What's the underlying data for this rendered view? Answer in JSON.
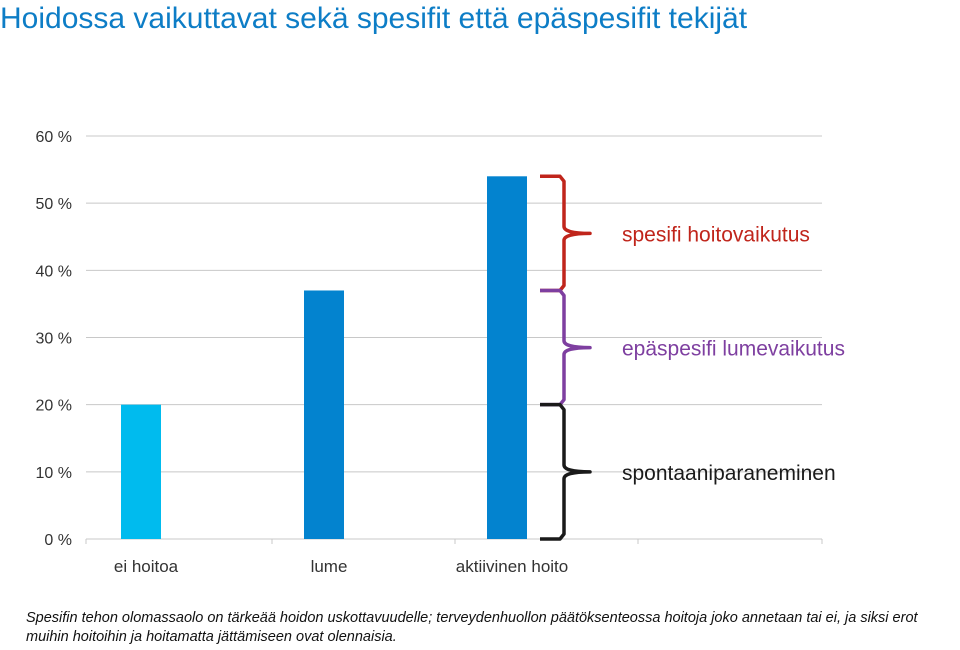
{
  "title": "Hoidossa vaikuttavat sekä spesifit että epäspesifit tekijät",
  "chart_data": {
    "type": "bar",
    "categories": [
      "ei hoitoa",
      "lume",
      "aktiivinen hoito"
    ],
    "values": [
      20,
      37,
      54
    ],
    "ylim": [
      0,
      60
    ],
    "yticks": [
      0,
      10,
      20,
      30,
      40,
      50,
      60
    ],
    "ytick_labels": [
      "0 %",
      "10 %",
      "20 %",
      "30 %",
      "40 %",
      "50 %",
      "60 %"
    ],
    "grid": true,
    "bar_colors": [
      "#00bbee",
      "#0383cf",
      "#0383cf"
    ],
    "annotations": [
      {
        "label": "spesifi hoitovaikutus",
        "from": 37,
        "to": 54,
        "color": "#c0251b"
      },
      {
        "label": "epäspesifi lumevaikutus",
        "from": 20,
        "to": 37,
        "color": "#7e3fa0"
      },
      {
        "label": "spontaaniparaneminen",
        "from": 0,
        "to": 20,
        "color": "#1a1a1a"
      }
    ]
  },
  "caption": "Spesifin tehon olomassaolo on tärkeää hoidon uskottavuudelle; terveydenhuollon päätöksenteossa hoitoja joko annetaan tai ei, ja siksi  erot muihin hoitoihin ja hoitamatta jättämiseen ovat olennaisia."
}
